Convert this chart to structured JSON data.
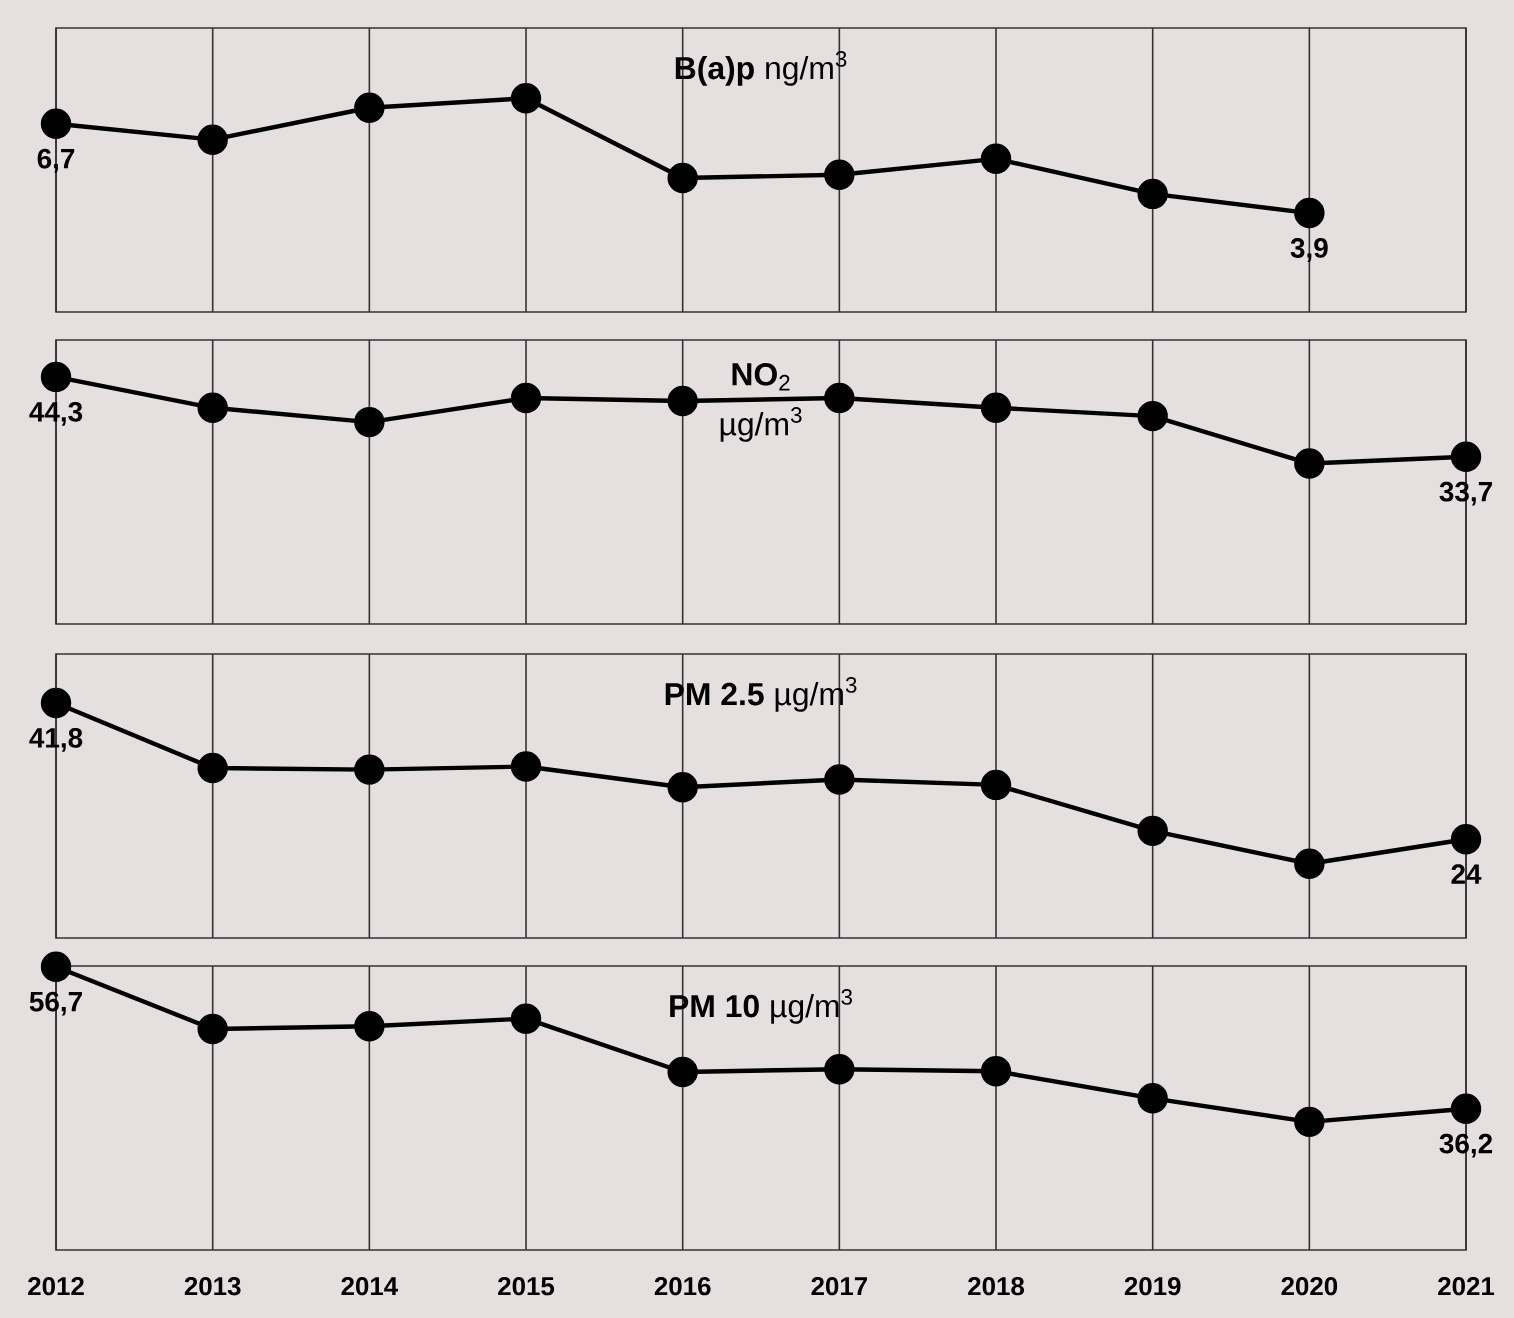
{
  "chart_data": [
    {
      "type": "line",
      "title": "**B(a)p** ng/m$^{3}$",
      "categories": [
        "2012",
        "2013",
        "2014",
        "2015",
        "2016",
        "2017",
        "2018",
        "2019",
        "2020",
        "2021"
      ],
      "series": [
        {
          "color": "#000000",
          "values": [
            6.7,
            6.2,
            7.2,
            7.5,
            5.0,
            5.1,
            5.6,
            4.5,
            3.9,
            null
          ],
          "value_labels": [
            "6,7",
            null,
            null,
            null,
            null,
            null,
            null,
            null,
            "3,9",
            null
          ]
        }
      ],
      "ylim": [
        0.8,
        9.7
      ],
      "grid": "x",
      "marker": "circle",
      "tick_labels": false
    },
    {
      "type": "line",
      "title": "**NO**$_{2}$",
      "subtitle": "µg/m$^{3}$",
      "categories": [
        "2012",
        "2013",
        "2014",
        "2015",
        "2016",
        "2017",
        "2018",
        "2019",
        "2020",
        "2021"
      ],
      "series": [
        {
          "color": "#000000",
          "values": [
            44.3,
            40.2,
            38.3,
            41.5,
            41.1,
            41.5,
            40.2,
            39.1,
            32.8,
            33.7
          ],
          "value_labels": [
            "44,3",
            null,
            null,
            null,
            null,
            null,
            null,
            null,
            null,
            "33,7"
          ]
        }
      ],
      "ylim": [
        11.5,
        49.2
      ],
      "grid": "x",
      "marker": "circle",
      "tick_labels": false
    },
    {
      "type": "line",
      "title": "**PM 2.5** µg/m$^{3}$",
      "categories": [
        "2012",
        "2013",
        "2014",
        "2015",
        "2016",
        "2017",
        "2018",
        "2019",
        "2020",
        "2021"
      ],
      "series": [
        {
          "color": "#000000",
          "values": [
            41.8,
            33.3,
            33.1,
            33.5,
            30.8,
            31.8,
            31.1,
            25.1,
            20.8,
            24
          ],
          "value_labels": [
            "41,8",
            null,
            null,
            null,
            null,
            null,
            null,
            null,
            null,
            "24"
          ]
        }
      ],
      "ylim": [
        11.1,
        48.2
      ],
      "grid": "x",
      "marker": "circle",
      "tick_labels": false
    },
    {
      "type": "line",
      "title": "**PM 10**  µg/m$^{3}$",
      "categories": [
        "2012",
        "2013",
        "2014",
        "2015",
        "2016",
        "2017",
        "2018",
        "2019",
        "2020",
        "2021"
      ],
      "series": [
        {
          "color": "#000000",
          "values": [
            56.7,
            47.7,
            48.1,
            49.2,
            41.5,
            41.9,
            41.6,
            37.7,
            34.3,
            36.2
          ],
          "value_labels": [
            "56,7",
            null,
            null,
            null,
            null,
            null,
            null,
            null,
            null,
            "36,2"
          ]
        }
      ],
      "ylim": [
        15.8,
        56.8
      ],
      "grid": "x",
      "marker": "circle",
      "tick_labels": "x"
    }
  ]
}
